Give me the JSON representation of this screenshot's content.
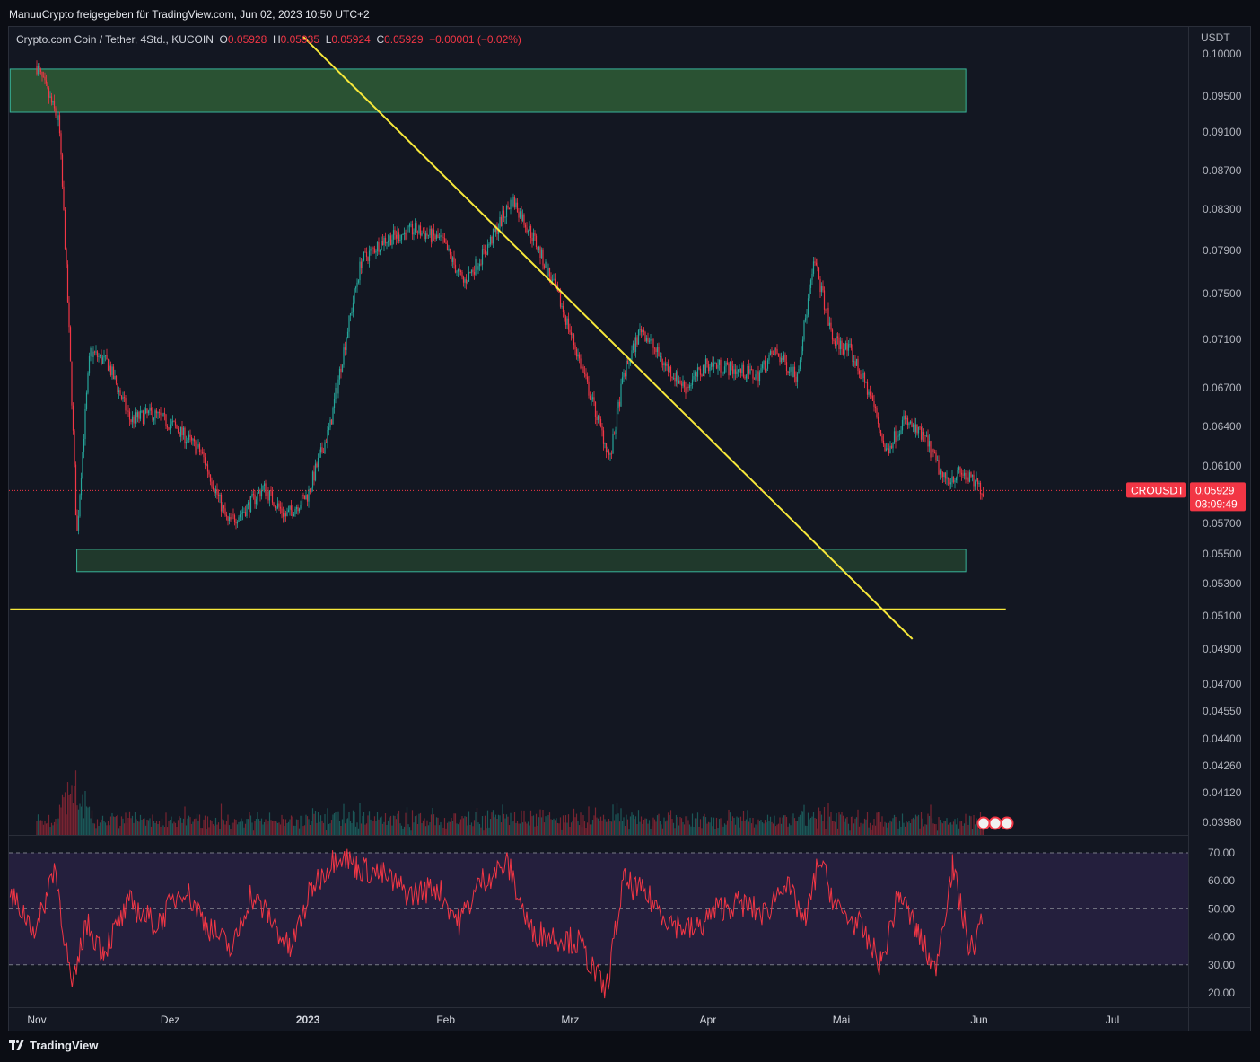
{
  "header": {
    "publish_line": "ManuuCrypto freigegeben für TradingView.com, Jun 02, 2023 10:50 UTC+2"
  },
  "legend": {
    "symbol_desc": "Crypto.com Coin / Tether, 4Std., KUCOIN",
    "o_label": "O",
    "o_value": "0.05928",
    "h_label": "H",
    "h_value": "0.05935",
    "l_label": "L",
    "l_value": "0.05924",
    "c_label": "C",
    "c_value": "0.05929",
    "change": "−0.00001 (−0.02%)"
  },
  "footer": {
    "brand": "TradingView"
  },
  "colors": {
    "background": "#131722",
    "up": "#26a69a",
    "down": "#f23645",
    "trendline": "#f7e83b",
    "zone_fill": "#2b5535",
    "zone_border": "#37b39a",
    "rsi": "#f23645",
    "rsi_band": "#241f3d",
    "axis_text": "#b2b5be"
  },
  "chart_data": [
    {
      "type": "candlestick",
      "symbol": "CROUSDT",
      "currency_label": "USDT",
      "x_labels": [
        "Nov",
        "Dez",
        "2023",
        "Feb",
        "Mrz",
        "Apr",
        "Mai",
        "Jun",
        "Jul"
      ],
      "y_ticks": [
        "0.10000",
        "0.09500",
        "0.09100",
        "0.08700",
        "0.08300",
        "0.07900",
        "0.07500",
        "0.07100",
        "0.06700",
        "0.06400",
        "0.06100",
        "0.05700",
        "0.05500",
        "0.05300",
        "0.05100",
        "0.04900",
        "0.04700",
        "0.04550",
        "0.04400",
        "0.04260",
        "0.04120",
        "0.03980"
      ],
      "last_price": {
        "label": "CROUSDT",
        "value": "0.05929",
        "countdown": "03:09:49"
      },
      "price_path": [
        [
          "2022-11-01",
          0.0985
        ],
        [
          "2022-11-06",
          0.092
        ],
        [
          "2022-11-10",
          0.056
        ],
        [
          "2022-11-13",
          0.07
        ],
        [
          "2022-11-17",
          0.069
        ],
        [
          "2022-11-22",
          0.0645
        ],
        [
          "2022-11-27",
          0.065
        ],
        [
          "2022-12-02",
          0.064
        ],
        [
          "2022-12-08",
          0.062
        ],
        [
          "2022-12-14",
          0.057
        ],
        [
          "2022-12-18",
          0.058
        ],
        [
          "2022-12-22",
          0.0595
        ],
        [
          "2022-12-27",
          0.0575
        ],
        [
          "2023-01-01",
          0.059
        ],
        [
          "2023-01-06",
          0.064
        ],
        [
          "2023-01-09",
          0.07
        ],
        [
          "2023-01-13",
          0.078
        ],
        [
          "2023-01-18",
          0.08
        ],
        [
          "2023-01-25",
          0.081
        ],
        [
          "2023-01-31",
          0.08
        ],
        [
          "2023-02-05",
          0.076
        ],
        [
          "2023-02-10",
          0.079
        ],
        [
          "2023-02-16",
          0.084
        ],
        [
          "2023-02-21",
          0.08
        ],
        [
          "2023-02-27",
          0.074
        ],
        [
          "2023-03-05",
          0.067
        ],
        [
          "2023-03-10",
          0.0615
        ],
        [
          "2023-03-13",
          0.068
        ],
        [
          "2023-03-17",
          0.072
        ],
        [
          "2023-03-22",
          0.069
        ],
        [
          "2023-03-27",
          0.067
        ],
        [
          "2023-04-01",
          0.069
        ],
        [
          "2023-04-07",
          0.0685
        ],
        [
          "2023-04-12",
          0.068
        ],
        [
          "2023-04-16",
          0.07
        ],
        [
          "2023-04-21",
          0.068
        ],
        [
          "2023-04-25",
          0.078
        ],
        [
          "2023-04-29",
          0.071
        ],
        [
          "2023-05-03",
          0.07
        ],
        [
          "2023-05-08",
          0.066
        ],
        [
          "2023-05-11",
          0.062
        ],
        [
          "2023-05-15",
          0.0645
        ],
        [
          "2023-05-20",
          0.063
        ],
        [
          "2023-05-24",
          0.06
        ],
        [
          "2023-05-28",
          0.0605
        ],
        [
          "2023-06-02",
          0.0593
        ]
      ],
      "zones": [
        {
          "from": "2022-10-26",
          "to": "2023-05-29",
          "low": 0.0932,
          "high": 0.0982
        },
        {
          "from": "2022-11-10",
          "to": "2023-05-29",
          "low": 0.0538,
          "high": 0.0553
        }
      ],
      "trendlines": [
        {
          "x1": "2022-12-31",
          "y1": 0.102,
          "x2": "2023-05-17",
          "y2": 0.0496
        },
        {
          "x1": "2022-10-26",
          "y1": 0.0514,
          "x2": "2023-06-07",
          "y2": 0.0514
        }
      ]
    },
    {
      "type": "line",
      "name": "RSI",
      "y_ticks": [
        "70.00",
        "60.00",
        "50.00",
        "40.00",
        "30.00",
        "20.00"
      ],
      "band": [
        30,
        70
      ],
      "midline": 50,
      "path": [
        [
          "2022-10-26",
          55
        ],
        [
          "2022-11-01",
          42
        ],
        [
          "2022-11-05",
          66
        ],
        [
          "2022-11-09",
          20
        ],
        [
          "2022-11-12",
          45
        ],
        [
          "2022-11-16",
          35
        ],
        [
          "2022-11-22",
          52
        ],
        [
          "2022-11-28",
          44
        ],
        [
          "2022-12-04",
          58
        ],
        [
          "2022-12-09",
          45
        ],
        [
          "2022-12-15",
          35
        ],
        [
          "2022-12-19",
          55
        ],
        [
          "2022-12-23",
          48
        ],
        [
          "2022-12-28",
          35
        ],
        [
          "2023-01-02",
          58
        ],
        [
          "2023-01-08",
          70
        ],
        [
          "2023-01-12",
          65
        ],
        [
          "2023-01-18",
          62
        ],
        [
          "2023-01-24",
          55
        ],
        [
          "2023-01-30",
          58
        ],
        [
          "2023-02-04",
          45
        ],
        [
          "2023-02-09",
          60
        ],
        [
          "2023-02-15",
          66
        ],
        [
          "2023-02-20",
          42
        ],
        [
          "2023-02-26",
          40
        ],
        [
          "2023-03-03",
          38
        ],
        [
          "2023-03-09",
          20
        ],
        [
          "2023-03-13",
          60
        ],
        [
          "2023-03-18",
          55
        ],
        [
          "2023-03-24",
          45
        ],
        [
          "2023-03-29",
          42
        ],
        [
          "2023-04-03",
          50
        ],
        [
          "2023-04-08",
          52
        ],
        [
          "2023-04-14",
          48
        ],
        [
          "2023-04-18",
          60
        ],
        [
          "2023-04-23",
          45
        ],
        [
          "2023-04-26",
          68
        ],
        [
          "2023-04-30",
          50
        ],
        [
          "2023-05-05",
          44
        ],
        [
          "2023-05-10",
          30
        ],
        [
          "2023-05-14",
          56
        ],
        [
          "2023-05-18",
          42
        ],
        [
          "2023-05-22",
          28
        ],
        [
          "2023-05-26",
          65
        ],
        [
          "2023-05-30",
          35
        ],
        [
          "2023-06-02",
          46
        ]
      ]
    }
  ]
}
